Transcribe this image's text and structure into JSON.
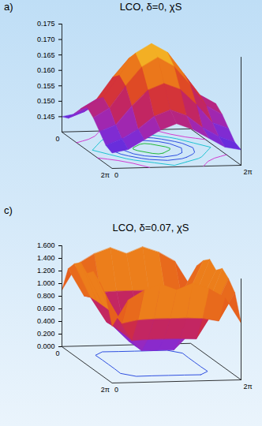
{
  "chart_data": [
    {
      "type": "surface",
      "panel_label": "a)",
      "title": "LCO, δ=0, χS",
      "x": [
        0,
        0.785,
        1.571,
        2.356,
        3.142,
        3.927,
        4.712,
        5.498,
        6.283
      ],
      "y": [
        0,
        0.785,
        1.571,
        2.356,
        3.142,
        3.927,
        4.712,
        5.498,
        6.283
      ],
      "z": [
        [
          0.145,
          0.146,
          0.149,
          0.152,
          0.154,
          0.152,
          0.149,
          0.146,
          0.145
        ],
        [
          0.146,
          0.148,
          0.151,
          0.155,
          0.157,
          0.155,
          0.151,
          0.148,
          0.146
        ],
        [
          0.149,
          0.151,
          0.157,
          0.162,
          0.164,
          0.162,
          0.157,
          0.151,
          0.149
        ],
        [
          0.152,
          0.155,
          0.162,
          0.168,
          0.171,
          0.168,
          0.162,
          0.155,
          0.152
        ],
        [
          0.154,
          0.157,
          0.164,
          0.171,
          0.174,
          0.171,
          0.164,
          0.157,
          0.154
        ],
        [
          0.152,
          0.155,
          0.162,
          0.168,
          0.171,
          0.168,
          0.162,
          0.155,
          0.152
        ],
        [
          0.149,
          0.151,
          0.157,
          0.162,
          0.164,
          0.162,
          0.157,
          0.151,
          0.149
        ],
        [
          0.146,
          0.148,
          0.151,
          0.155,
          0.157,
          0.155,
          0.151,
          0.148,
          0.146
        ],
        [
          0.145,
          0.146,
          0.149,
          0.152,
          0.154,
          0.152,
          0.149,
          0.146,
          0.145
        ]
      ],
      "xlim": [
        0,
        6.283
      ],
      "xticks": [
        0,
        {
          "value": 6.283,
          "label": "2π"
        }
      ],
      "ylim": [
        0,
        6.283
      ],
      "yticks": [
        0,
        {
          "value": 6.283,
          "label": "2π"
        }
      ],
      "zlim": [
        0.14,
        0.175
      ],
      "zticks": [
        0.145,
        {
          "value": 0.15,
          "label": "0.150"
        },
        0.155,
        {
          "value": 0.16,
          "label": "0.160"
        },
        0.165,
        {
          "value": 0.17,
          "label": "0.170"
        },
        0.175
      ],
      "contour_levels": [
        0.15,
        0.155,
        0.16,
        0.165,
        0.17
      ]
    },
    {
      "type": "surface",
      "panel_label": "c)",
      "title": "LCO, δ=0.07, χS",
      "x": [
        0,
        0.785,
        1.571,
        2.356,
        3.142,
        3.927,
        4.712,
        5.498,
        6.283
      ],
      "y": [
        0,
        0.785,
        1.571,
        2.356,
        3.142,
        3.927,
        4.712,
        5.498,
        6.283
      ],
      "z": [
        [
          0.9,
          1.31,
          1.46,
          1.55,
          1.45,
          1.55,
          1.46,
          1.31,
          0.9
        ],
        [
          1.31,
          0.87,
          0.92,
          0.93,
          0.93,
          0.93,
          0.92,
          0.87,
          1.31
        ],
        [
          1.46,
          0.92,
          0.52,
          0.53,
          0.53,
          0.53,
          0.52,
          0.92,
          1.46
        ],
        [
          1.55,
          0.93,
          0.53,
          0.28,
          0.28,
          0.28,
          0.53,
          0.93,
          1.55
        ],
        [
          1.45,
          0.93,
          0.53,
          0.28,
          0.2,
          0.28,
          0.53,
          0.93,
          1.45
        ],
        [
          1.55,
          0.93,
          0.53,
          0.28,
          0.28,
          0.28,
          0.53,
          0.93,
          1.55
        ],
        [
          1.46,
          0.92,
          0.52,
          0.53,
          0.53,
          0.53,
          0.52,
          0.92,
          1.46
        ],
        [
          1.31,
          0.87,
          0.92,
          0.93,
          0.93,
          0.93,
          0.92,
          0.87,
          1.31
        ],
        [
          0.9,
          1.31,
          1.46,
          1.55,
          1.45,
          1.55,
          1.46,
          1.31,
          0.9
        ]
      ],
      "xlim": [
        0,
        6.283
      ],
      "xticks": [
        0,
        {
          "value": 6.283,
          "label": "2π"
        }
      ],
      "ylim": [
        0,
        6.283
      ],
      "yticks": [
        0,
        {
          "value": 6.283,
          "label": "2π"
        }
      ],
      "zlim": [
        0,
        1.6
      ],
      "zticks": [
        {
          "value": 0,
          "label": "0.000"
        },
        {
          "value": 0.2,
          "label": "0.200"
        },
        {
          "value": 0.4,
          "label": "0.400"
        },
        {
          "value": 0.6,
          "label": "0.600"
        },
        {
          "value": 0.8,
          "label": "0.800"
        },
        {
          "value": 1,
          "label": "1.000"
        },
        {
          "value": 1.2,
          "label": "1.200"
        },
        {
          "value": 1.4,
          "label": "1.400"
        },
        {
          "value": 1.6,
          "label": "1.600"
        }
      ],
      "contour_levels": [
        0.8
      ]
    }
  ]
}
